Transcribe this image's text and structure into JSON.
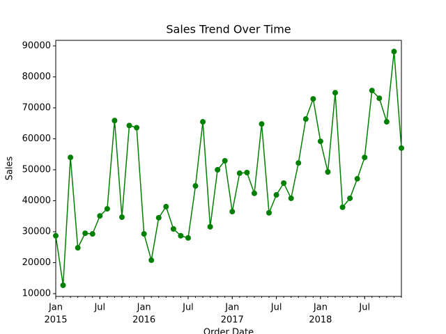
{
  "chart_data": {
    "type": "line",
    "title": "Sales Trend Over Time",
    "x_label": "Order Date",
    "y_label": "Sales",
    "x": [
      "2015-01",
      "2015-02",
      "2015-03",
      "2015-04",
      "2015-05",
      "2015-06",
      "2015-07",
      "2015-08",
      "2015-09",
      "2015-10",
      "2015-11",
      "2015-12",
      "2016-01",
      "2016-02",
      "2016-03",
      "2016-04",
      "2016-05",
      "2016-06",
      "2016-07",
      "2016-08",
      "2016-09",
      "2016-10",
      "2016-11",
      "2016-12",
      "2017-01",
      "2017-02",
      "2017-03",
      "2017-04",
      "2017-05",
      "2017-06",
      "2017-07",
      "2017-08",
      "2017-09",
      "2017-10",
      "2017-11",
      "2017-12",
      "2018-01",
      "2018-02",
      "2018-03",
      "2018-04",
      "2018-05",
      "2018-06",
      "2018-07",
      "2018-08",
      "2018-09",
      "2018-10",
      "2018-11",
      "2018-12"
    ],
    "series": [
      {
        "name": "Sales",
        "color": "#008000",
        "values": [
          28700,
          12700,
          54000,
          24800,
          29500,
          29300,
          35100,
          37400,
          65900,
          34700,
          64300,
          63600,
          29300,
          20800,
          34500,
          38100,
          30900,
          28700,
          28000,
          44800,
          65500,
          31600,
          50000,
          52900,
          36500,
          48900,
          49100,
          42400,
          64800,
          36100,
          41900,
          45700,
          40800,
          52200,
          66400,
          72900,
          59200,
          49300,
          74900,
          37900,
          40800,
          47100,
          54000,
          75600,
          73100,
          65500,
          88200,
          57000
        ]
      }
    ],
    "xlim": [
      "2015-01",
      "2018-12"
    ],
    "xticks": [
      {
        "value": "2015-01",
        "label": [
          "Jan",
          "2015"
        ]
      },
      {
        "value": "2015-07",
        "label": [
          "Jul"
        ]
      },
      {
        "value": "2016-01",
        "label": [
          "Jan",
          "2016"
        ]
      },
      {
        "value": "2016-07",
        "label": [
          "Jul"
        ]
      },
      {
        "value": "2017-01",
        "label": [
          "Jan",
          "2017"
        ]
      },
      {
        "value": "2017-07",
        "label": [
          "Jul"
        ]
      },
      {
        "value": "2018-01",
        "label": [
          "Jan",
          "2018"
        ]
      },
      {
        "value": "2018-07",
        "label": [
          "Jul"
        ]
      }
    ],
    "ylim": [
      9100,
      91800
    ],
    "yticks": [
      10000,
      20000,
      30000,
      40000,
      50000,
      60000,
      70000,
      80000,
      90000
    ]
  }
}
